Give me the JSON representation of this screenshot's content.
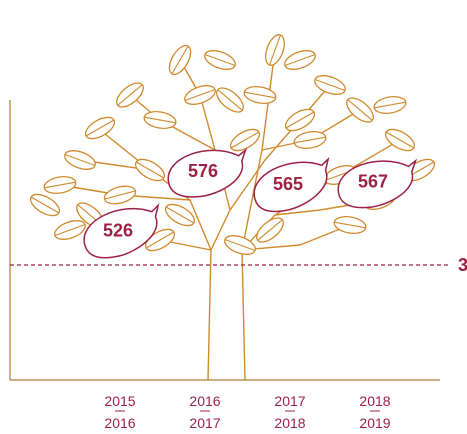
{
  "chart_data": {
    "type": "pictogram",
    "categories": [
      [
        "2015",
        "2016"
      ],
      [
        "2016",
        "2017"
      ],
      [
        "2017",
        "2018"
      ],
      [
        "2018",
        "2019"
      ]
    ],
    "values": [
      526,
      576,
      565,
      567
    ],
    "color": "#9b2245",
    "ylim": [
      400,
      720
    ],
    "reference_line": {
      "label": "3"
    }
  }
}
